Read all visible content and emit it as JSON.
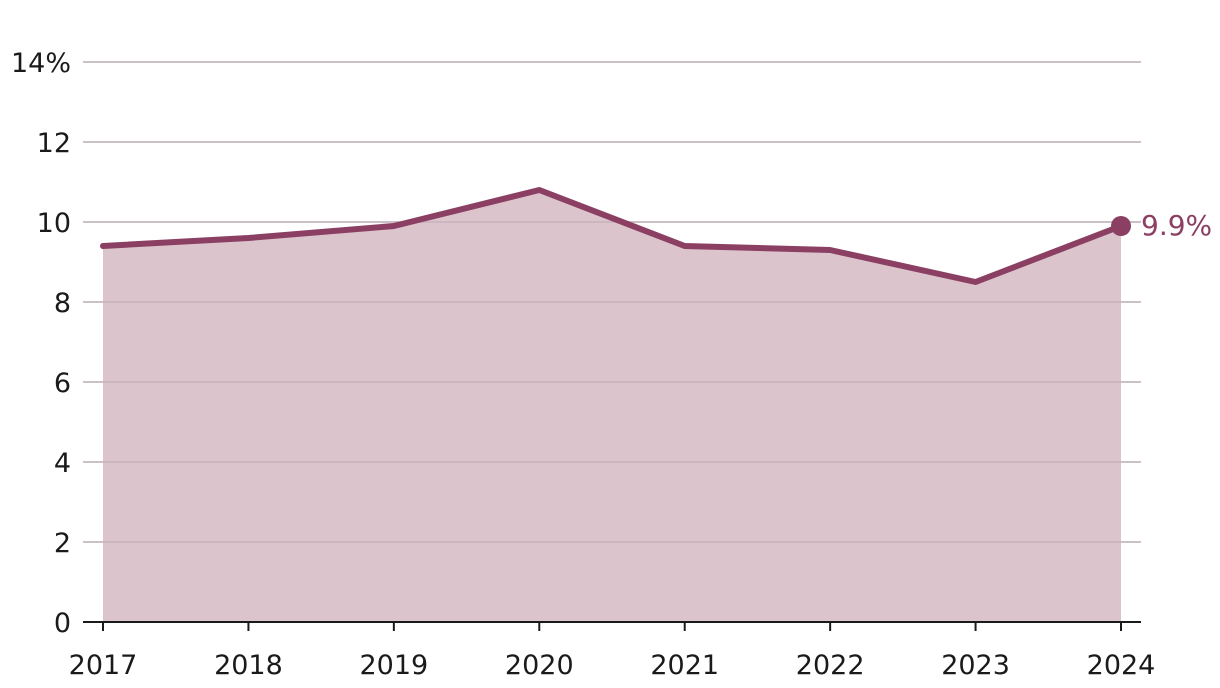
{
  "chart_data": {
    "type": "area",
    "x": [
      "2017",
      "2018",
      "2019",
      "2020",
      "2021",
      "2022",
      "2023",
      "2024"
    ],
    "series": [
      {
        "values": [
          9.4,
          9.6,
          9.9,
          10.8,
          9.4,
          9.3,
          8.5,
          9.9
        ]
      }
    ],
    "yticks": [
      0,
      2,
      4,
      6,
      8,
      10,
      12,
      14
    ],
    "ytick_labels": [
      "0",
      "2",
      "4",
      "6",
      "8",
      "10",
      "12",
      "14%"
    ],
    "ylim": [
      0,
      14
    ],
    "end_label": "9.9%",
    "grid": true,
    "colors": {
      "line": "#8b3f63",
      "fill": "#dcc4cd"
    }
  }
}
